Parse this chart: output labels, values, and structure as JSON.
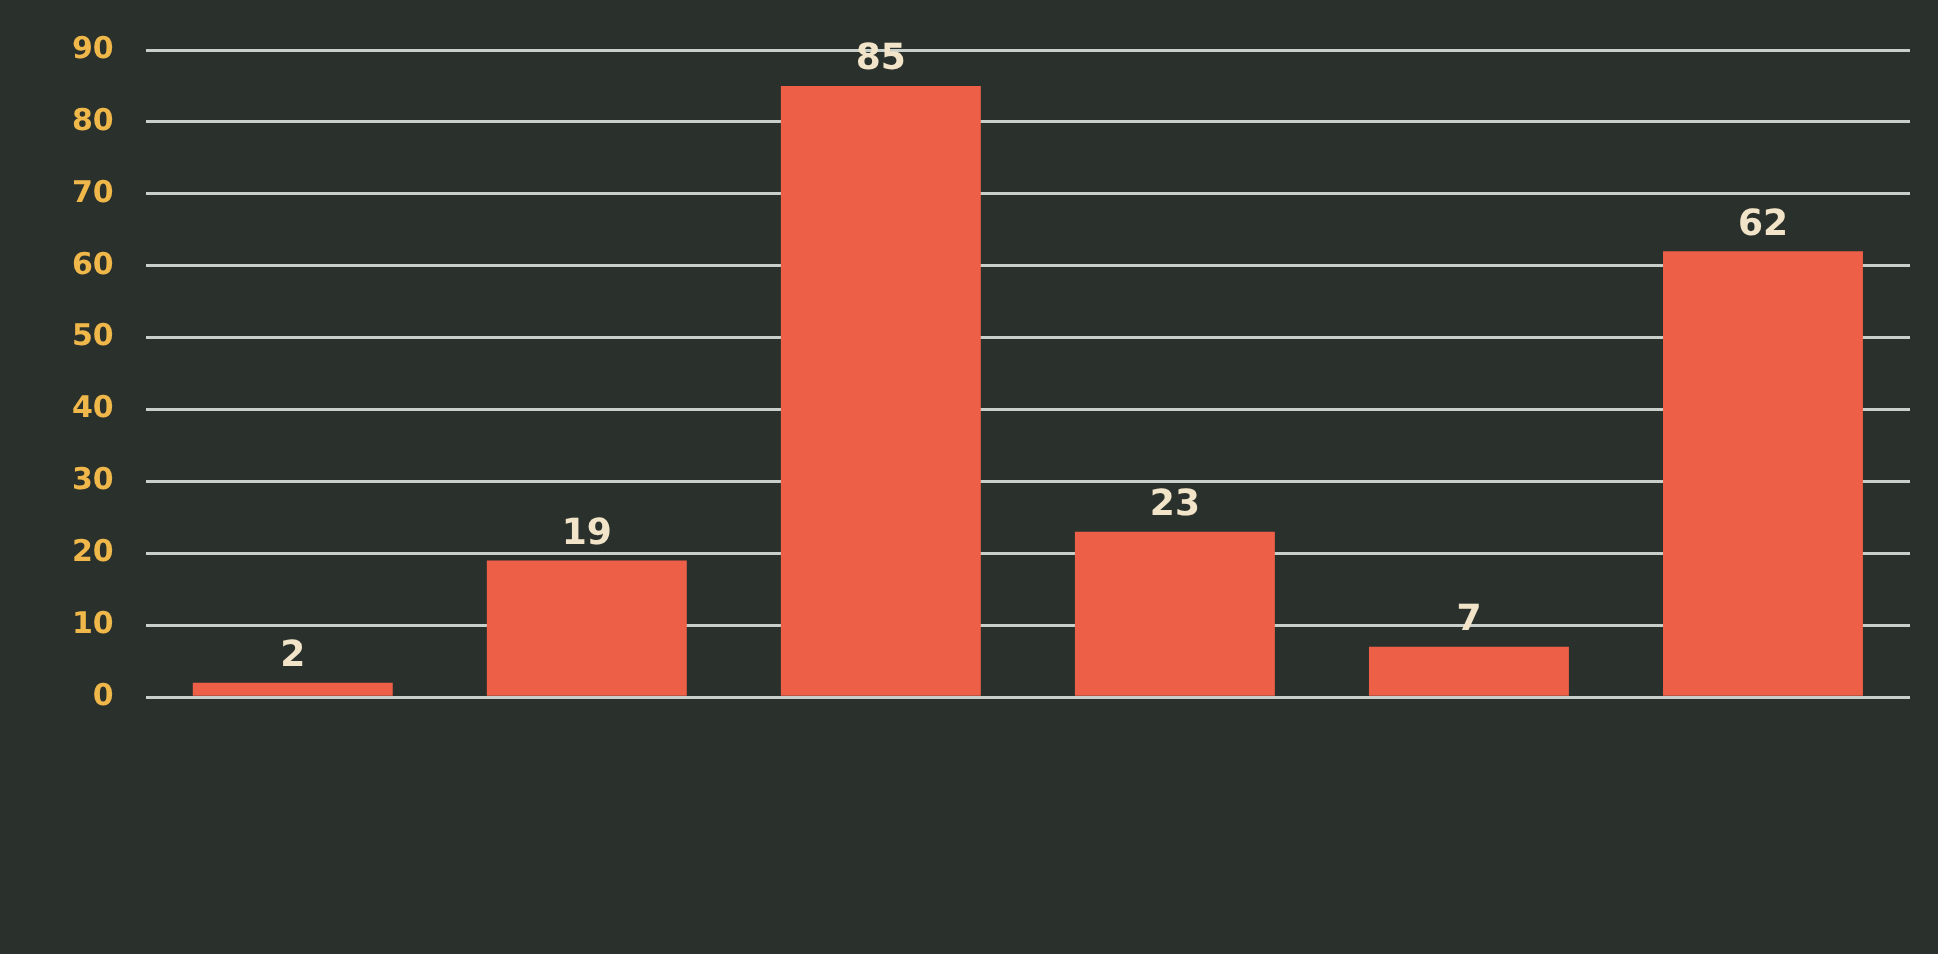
{
  "chart_data": {
    "type": "bar",
    "categories": [
      null,
      null,
      null,
      null,
      null,
      null
    ],
    "values": [
      2,
      19,
      85,
      23,
      7,
      62
    ],
    "color": "#ee5f48",
    "ylim": [
      0,
      90
    ],
    "yticks": [
      0,
      10,
      20,
      30,
      40,
      50,
      60,
      70,
      80,
      90
    ],
    "grid": "y",
    "data_labels": true
  }
}
